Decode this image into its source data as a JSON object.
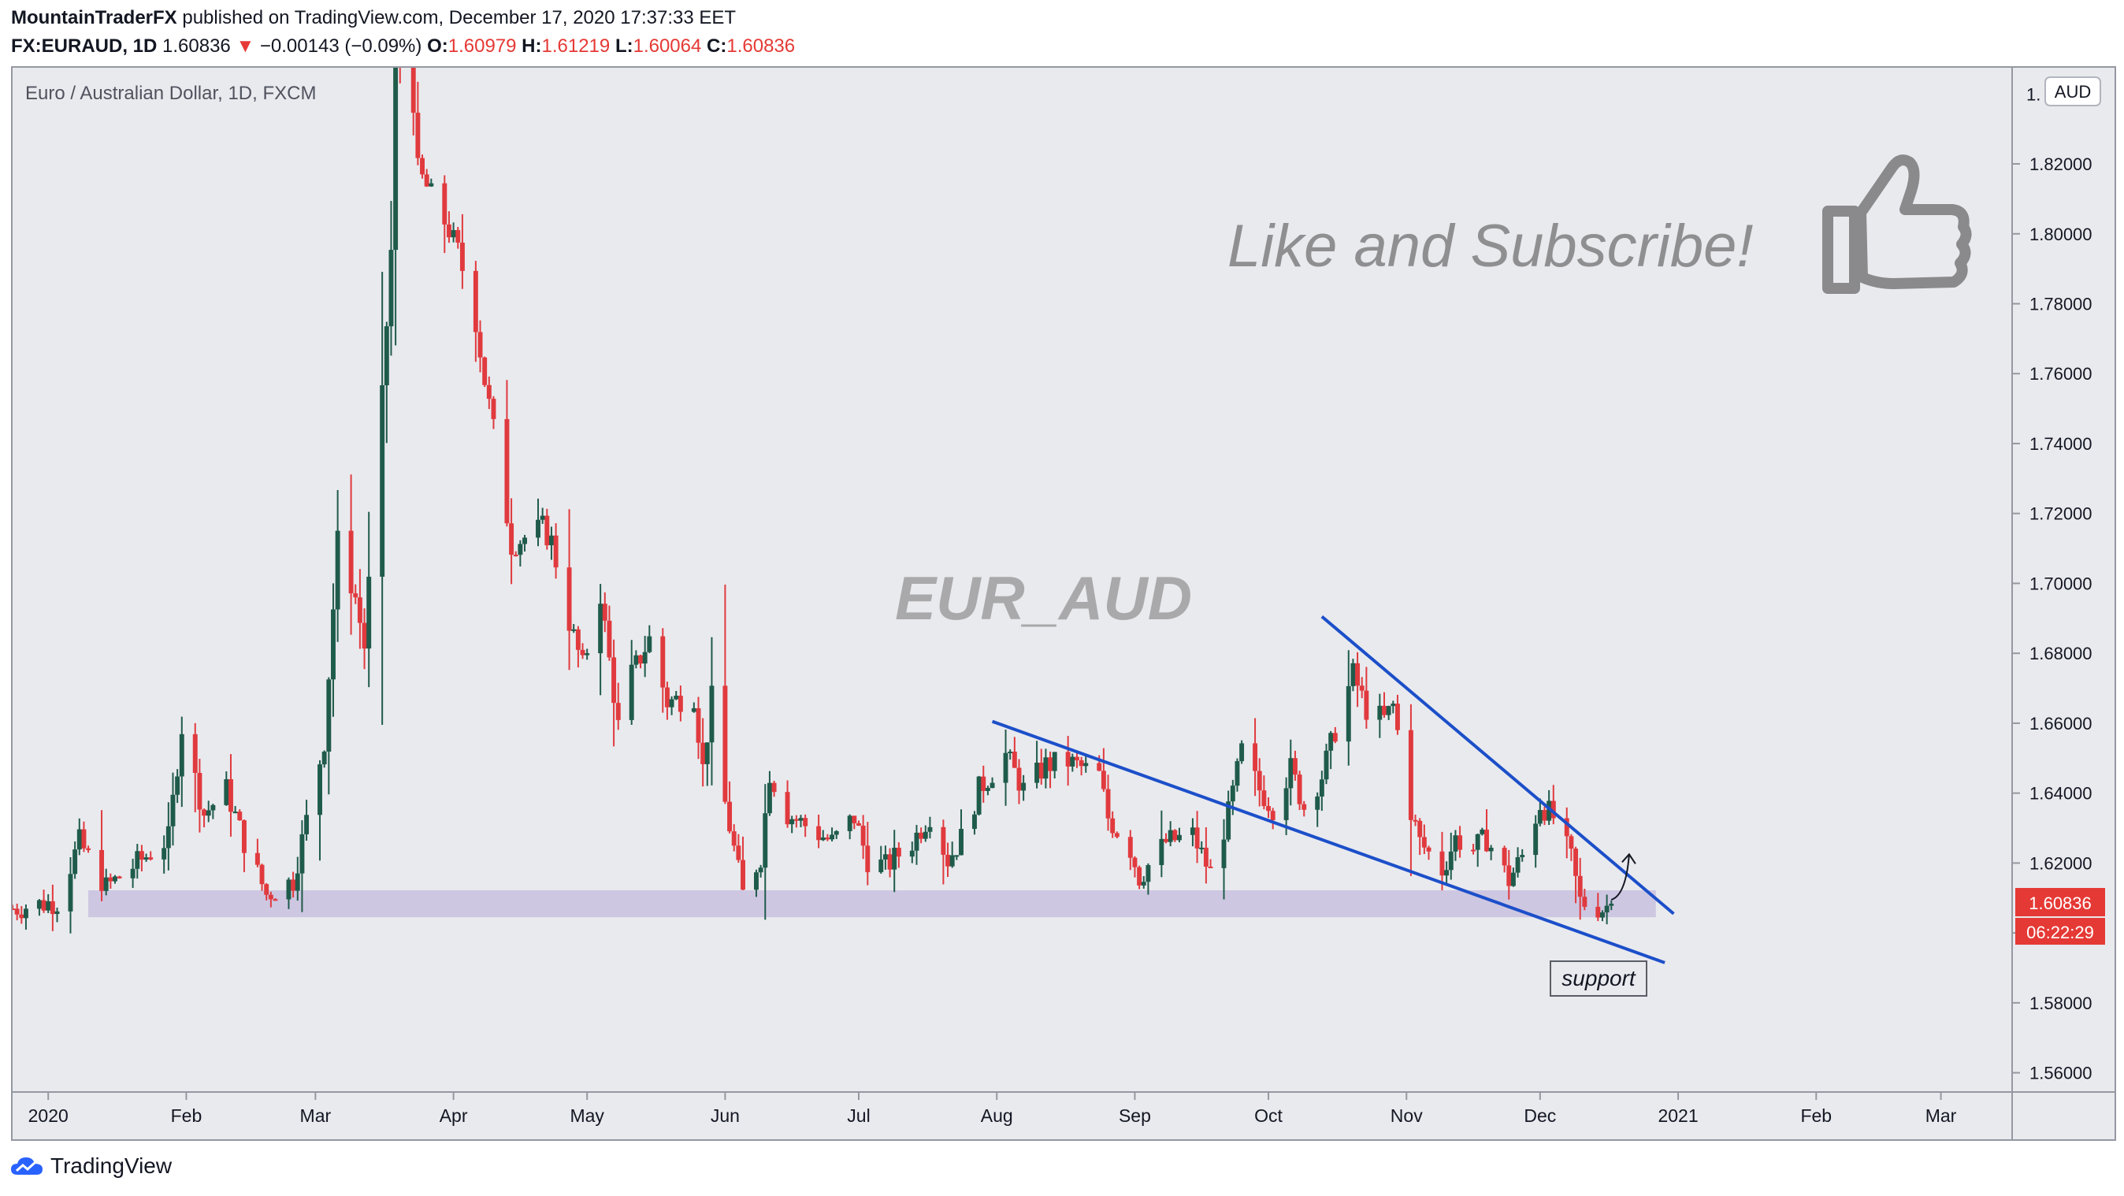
{
  "header": {
    "author": "MountainTraderFX",
    "published": "published on TradingView.com, December 17, 2020 17:37:33 EET"
  },
  "ohlc": {
    "symbol": "FX:EURAUD, 1D",
    "last": "1.60836",
    "change": "−0.00143 (−0.09%)",
    "o_label": "O:",
    "o": "1.60979",
    "h_label": "H:",
    "h": "1.61219",
    "l_label": "L:",
    "l": "1.60064",
    "c_label": "C:",
    "c": "1.60836"
  },
  "footer": {
    "brand": "TradingView"
  },
  "colors": {
    "up": "#1f5b4a",
    "down": "#e03a3e",
    "trendline": "#1c4fc9",
    "support_zone": "#c9c1df",
    "background": "#e9eaee",
    "price_label": "#e53935"
  },
  "chart_data": {
    "type": "candlestick",
    "title": "Euro / Australian Dollar, 1D, FXCM",
    "watermark": "EUR_AUD",
    "promo_text": "Like and Subscribe!",
    "promo_icon": "thumbs-up-icon",
    "currency_badge": "AUD",
    "y_ticks": [
      "1.56000",
      "1.58000",
      "1.60000",
      "1.62000",
      "1.64000",
      "1.66000",
      "1.68000",
      "1.70000",
      "1.72000",
      "1.74000",
      "1.76000",
      "1.78000",
      "1.80000",
      "1.82000"
    ],
    "y_top_partial": "1.",
    "ylim": [
      1.5545,
      1.8475
    ],
    "x_ticks": [
      {
        "label": "2020",
        "date": "2020-01-01"
      },
      {
        "label": "Feb",
        "date": "2020-02-01"
      },
      {
        "label": "Mar",
        "date": "2020-03-01"
      },
      {
        "label": "Apr",
        "date": "2020-04-01"
      },
      {
        "label": "May",
        "date": "2020-05-01"
      },
      {
        "label": "Jun",
        "date": "2020-06-01"
      },
      {
        "label": "Jul",
        "date": "2020-07-01"
      },
      {
        "label": "Aug",
        "date": "2020-08-01"
      },
      {
        "label": "Sep",
        "date": "2020-09-01"
      },
      {
        "label": "Oct",
        "date": "2020-10-01"
      },
      {
        "label": "Nov",
        "date": "2020-11-01"
      },
      {
        "label": "Dec",
        "date": "2020-12-01"
      },
      {
        "label": "2021",
        "date": "2021-01-01"
      },
      {
        "label": "Feb",
        "date": "2021-02-01"
      },
      {
        "label": "Mar",
        "date": "2021-03-01"
      }
    ],
    "xlim": [
      "2019-12-24",
      "2021-03-17"
    ],
    "price_label": "1.60836",
    "countdown_label": "06:22:29",
    "support_label": "support",
    "anchors": [
      [
        "2019-12-24",
        1.607
      ],
      [
        "2020-01-03",
        1.609
      ],
      [
        "2020-01-08",
        1.626
      ],
      [
        "2020-01-14",
        1.613
      ],
      [
        "2020-01-28",
        1.627
      ],
      [
        "2020-01-31",
        1.659
      ],
      [
        "2020-02-05",
        1.634
      ],
      [
        "2020-02-10",
        1.641
      ],
      [
        "2020-02-14",
        1.626
      ],
      [
        "2020-02-19",
        1.611
      ],
      [
        "2020-02-25",
        1.615
      ],
      [
        "2020-03-03",
        1.655
      ],
      [
        "2020-03-06",
        1.712
      ],
      [
        "2020-03-10",
        1.696
      ],
      [
        "2020-03-12",
        1.682
      ],
      [
        "2020-03-16",
        1.753
      ],
      [
        "2020-03-18",
        1.795
      ],
      [
        "2020-03-19",
        1.852
      ],
      [
        "2020-03-23",
        1.838
      ],
      [
        "2020-03-24",
        1.818
      ],
      [
        "2020-03-27",
        1.811
      ],
      [
        "2020-03-31",
        1.801
      ],
      [
        "2020-04-02",
        1.795
      ],
      [
        "2020-04-06",
        1.775
      ],
      [
        "2020-04-08",
        1.758
      ],
      [
        "2020-04-10",
        1.744
      ],
      [
        "2020-04-14",
        1.711
      ],
      [
        "2020-04-21",
        1.716
      ],
      [
        "2020-04-23",
        1.712
      ],
      [
        "2020-04-27",
        1.689
      ],
      [
        "2020-04-30",
        1.676
      ],
      [
        "2020-05-04",
        1.697
      ],
      [
        "2020-05-08",
        1.659
      ],
      [
        "2020-05-11",
        1.674
      ],
      [
        "2020-05-15",
        1.684
      ],
      [
        "2020-05-19",
        1.666
      ],
      [
        "2020-05-25",
        1.668
      ],
      [
        "2020-05-27",
        1.647
      ],
      [
        "2020-05-29",
        1.667
      ],
      [
        "2020-06-01",
        1.637
      ],
      [
        "2020-06-05",
        1.611
      ],
      [
        "2020-06-09",
        1.622
      ],
      [
        "2020-06-11",
        1.646
      ],
      [
        "2020-06-15",
        1.634
      ],
      [
        "2020-06-25",
        1.626
      ],
      [
        "2020-06-30",
        1.633
      ],
      [
        "2020-07-03",
        1.621
      ],
      [
        "2020-07-07",
        1.619
      ],
      [
        "2020-07-13",
        1.626
      ],
      [
        "2020-07-17",
        1.634
      ],
      [
        "2020-07-21",
        1.621
      ],
      [
        "2020-07-24",
        1.627
      ],
      [
        "2020-07-28",
        1.641
      ],
      [
        "2020-08-03",
        1.651
      ],
      [
        "2020-08-07",
        1.641
      ],
      [
        "2020-08-12",
        1.648
      ],
      [
        "2020-08-17",
        1.649
      ],
      [
        "2020-08-24",
        1.645
      ],
      [
        "2020-08-26",
        1.633
      ],
      [
        "2020-08-31",
        1.624
      ],
      [
        "2020-09-02",
        1.616
      ],
      [
        "2020-09-08",
        1.626
      ],
      [
        "2020-09-14",
        1.628
      ],
      [
        "2020-09-18",
        1.617
      ],
      [
        "2020-09-22",
        1.634
      ],
      [
        "2020-09-25",
        1.652
      ],
      [
        "2020-09-29",
        1.641
      ],
      [
        "2020-10-02",
        1.636
      ],
      [
        "2020-10-06",
        1.647
      ],
      [
        "2020-10-09",
        1.636
      ],
      [
        "2020-10-13",
        1.645
      ],
      [
        "2020-10-16",
        1.658
      ],
      [
        "2020-10-20",
        1.674
      ],
      [
        "2020-10-23",
        1.664
      ],
      [
        "2020-10-27",
        1.661
      ],
      [
        "2020-10-29",
        1.665
      ],
      [
        "2020-11-02",
        1.635
      ],
      [
        "2020-11-04",
        1.626
      ],
      [
        "2020-11-09",
        1.618
      ],
      [
        "2020-11-12",
        1.627
      ],
      [
        "2020-11-16",
        1.624
      ],
      [
        "2020-11-19",
        1.627
      ],
      [
        "2020-11-24",
        1.615
      ],
      [
        "2020-11-27",
        1.622
      ],
      [
        "2020-12-01",
        1.637
      ],
      [
        "2020-12-04",
        1.633
      ],
      [
        "2020-12-08",
        1.621
      ],
      [
        "2020-12-10",
        1.609
      ],
      [
        "2020-12-15",
        1.607
      ],
      [
        "2020-12-17",
        1.60836
      ]
    ],
    "shapes": {
      "support_zone": {
        "from": "2020-01-10",
        "to": "2020-12-27",
        "low": 1.6045,
        "high": 1.6122
      },
      "upper_trendline": [
        [
          "2020-10-13",
          1.6905
        ],
        [
          "2020-12-31",
          1.6055
        ]
      ],
      "lower_trendline": [
        [
          "2020-07-31",
          1.6605
        ],
        [
          "2020-12-29",
          1.5915
        ]
      ],
      "arrow": [
        [
          "2020-12-17",
          1.6095
        ],
        [
          "2020-12-21",
          1.6225
        ]
      ]
    }
  }
}
